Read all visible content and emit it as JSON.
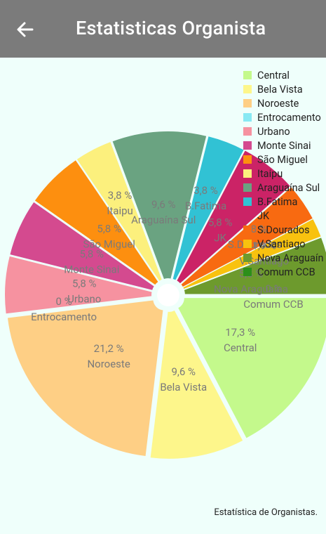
{
  "app": {
    "title": "Estatisticas Organista"
  },
  "description": "Estatística de Organistas.",
  "colors": {
    "appbar": "#7b7b7b",
    "background": "#effffb"
  },
  "chart_data": {
    "type": "pie",
    "hole": true,
    "slices": [
      {
        "name": "Central",
        "value": 17.3,
        "label": "17,3 %",
        "color": "#c4f98c"
      },
      {
        "name": "Bela Vista",
        "value": 9.6,
        "label": "9,6 %",
        "color": "#fdf68b"
      },
      {
        "name": "Noroeste",
        "value": 21.2,
        "label": "21,2 %",
        "color": "#fecf85"
      },
      {
        "name": "Entrocamento",
        "value": 0,
        "label": "0 %",
        "color": "#88e9f3"
      },
      {
        "name": "Urbano",
        "value": 5.8,
        "label": "5,8 %",
        "color": "#f692a0"
      },
      {
        "name": "Monte Sinai",
        "value": 5.8,
        "label": "5,8 %",
        "color": "#d44a8f"
      },
      {
        "name": "São Miguel",
        "value": 5.8,
        "label": "5,8 %",
        "color": "#fd8f0f"
      },
      {
        "name": "Itaipu",
        "value": 3.8,
        "label": "3,8 %",
        "color": "#fcf07d"
      },
      {
        "name": "Araguaína Sul",
        "value": 9.6,
        "label": "9,6 %",
        "color": "#6aa381"
      },
      {
        "name": "B.Fatima",
        "value": 3.8,
        "label": "3,8 %",
        "color": "#31c2d4"
      },
      {
        "name": "JK",
        "value": 5.8,
        "label": "5,8 %",
        "color": "#cb2366"
      },
      {
        "name": "S.Dourados",
        "value": 3.8,
        "label": "3,8 %",
        "color": "#f86a11"
      },
      {
        "name": "V.Santiago",
        "value": 1.9,
        "label": "1,9 %",
        "color": "#f8c20f"
      },
      {
        "name": "Nova Araguaína",
        "value": 5.8,
        "label": "5,8 %",
        "color": "#6d9a2d"
      },
      {
        "name": "Comum CCB",
        "value": 0,
        "label": "0 %",
        "color": "#2c8f1a"
      }
    ],
    "legend": {
      "position": "top-right",
      "entries": [
        "Central",
        "Bela Vista",
        "Noroeste",
        "Entrocamento",
        "Urbano",
        "Monte Sinai",
        "São Miguel",
        "Itaipu",
        "Araguaína Sul",
        "B.Fatima",
        "JK",
        "S.Dourados",
        "V.Santiago",
        "Nova Araguaín",
        "Comum CCB"
      ]
    }
  }
}
